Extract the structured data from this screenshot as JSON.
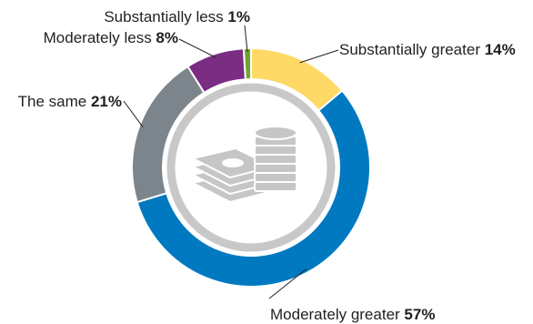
{
  "chart_data": {
    "type": "pie",
    "variant": "donut",
    "start_angle_deg": 0,
    "direction": "clockwise",
    "center_icon": "money-stack-and-coins-icon",
    "slices": [
      {
        "label": "Substantially greater",
        "value": 14,
        "value_label": "14%",
        "color": "#fed966"
      },
      {
        "label": "Moderately greater",
        "value": 57,
        "value_label": "57%",
        "color": "#0079c1"
      },
      {
        "label": "The same",
        "value": 21,
        "value_label": "21%",
        "color": "#7c858b"
      },
      {
        "label": "Moderately less",
        "value": 8,
        "value_label": "8%",
        "color": "#7b2c83"
      },
      {
        "label": "Substantially less",
        "value": 1,
        "value_label": "1%",
        "color": "#6ea52f"
      }
    ]
  }
}
